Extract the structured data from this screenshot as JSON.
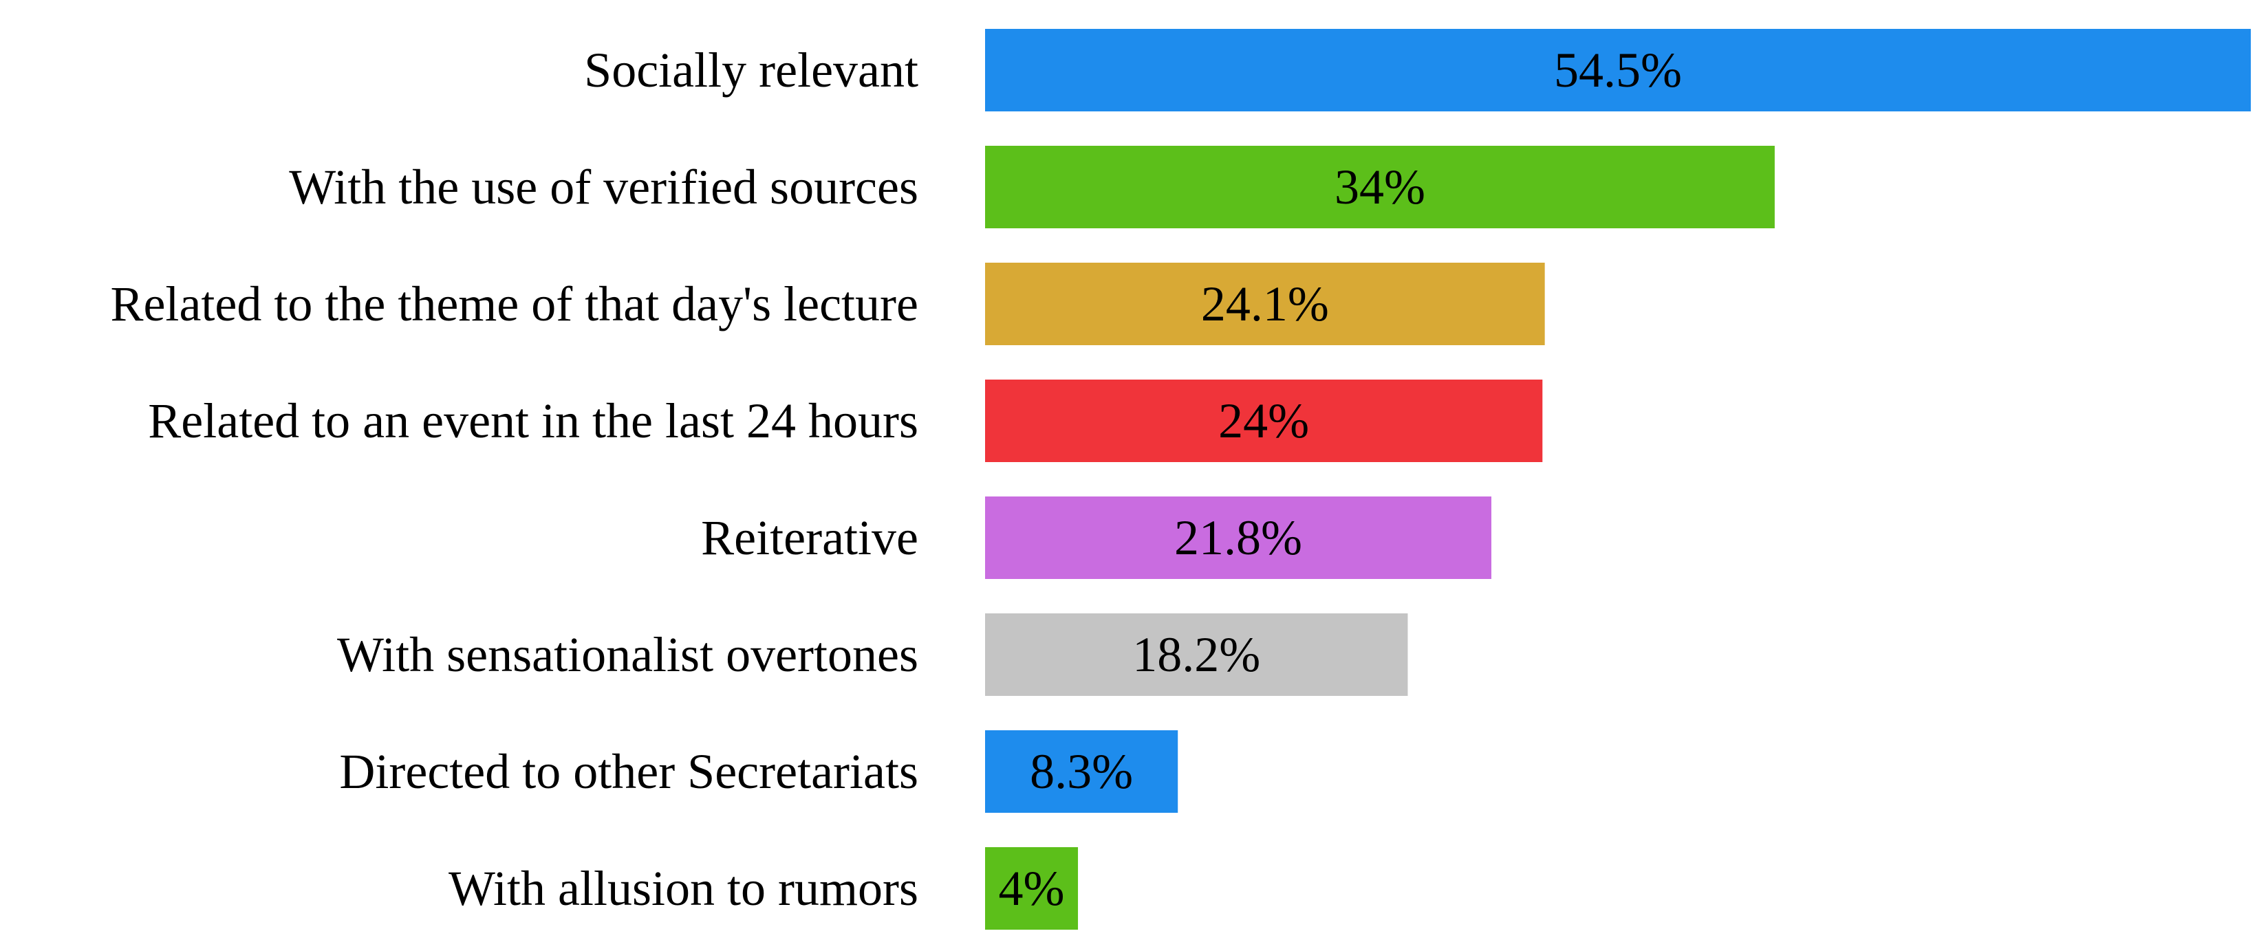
{
  "chart_data": {
    "type": "bar",
    "orientation": "horizontal",
    "categories": [
      "Socially relevant",
      "With the use of verified sources",
      "Related to the theme of that day's lecture",
      "Related to an event in the last 24 hours",
      "Reiterative",
      "With sensationalist overtones",
      "Directed to other Secretariats",
      "With allusion to rumors"
    ],
    "values": [
      54.5,
      34,
      24.1,
      24,
      21.8,
      18.2,
      8.3,
      4
    ],
    "value_labels": [
      "54.5%",
      "34%",
      "24.1%",
      "24%",
      "21.8%",
      "18.2%",
      "8.3%",
      "4%"
    ],
    "colors": [
      "#1e8ced",
      "#5cbf1a",
      "#d8a935",
      "#f0343a",
      "#c96ce0",
      "#c4c4c4",
      "#1e8ced",
      "#5cbf1a"
    ],
    "title": "",
    "xlabel": "",
    "ylabel": "",
    "xlim": [
      0,
      54.5
    ],
    "grid": false,
    "legend": "none",
    "value_unit": "%"
  }
}
